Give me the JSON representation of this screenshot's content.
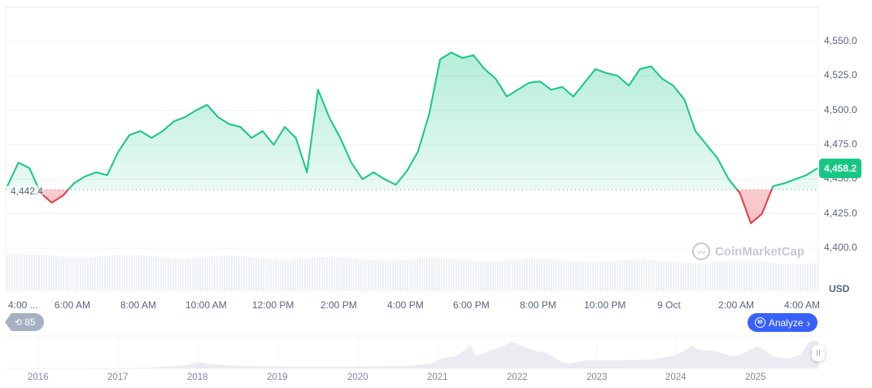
{
  "chart_data": {
    "type": "line",
    "title": "",
    "currency": "USD",
    "current_price": "4,458.2",
    "baseline_price": "4,442.4",
    "ylabel": "USD",
    "ylim": [
      4390,
      4560
    ],
    "y_ticks": [
      "4,550.0",
      "4,525.0",
      "4,500.0",
      "4,475.0",
      "4,450.0",
      "4,425.0",
      "4,400.0"
    ],
    "x_ticks": [
      "4:00 ...",
      "6:00 AM",
      "8:00 AM",
      "10:00 AM",
      "12:00 PM",
      "2:00 PM",
      "4:00 PM",
      "6:00 PM",
      "8:00 PM",
      "10:00 PM",
      "9 Oct",
      "2:00 AM",
      "4:00 AM"
    ],
    "colors": {
      "up": "#16c784",
      "down": "#ea3943",
      "grid": "#eff2f5"
    },
    "x": [
      "4:00 AM",
      "4:20",
      "4:40",
      "5:00",
      "5:20",
      "5:40",
      "6:00 AM",
      "6:20",
      "6:40",
      "7:00",
      "7:20",
      "7:40",
      "8:00 AM",
      "8:20",
      "8:40",
      "9:00",
      "9:20",
      "9:40",
      "10:00 AM",
      "10:20",
      "10:40",
      "11:00",
      "11:20",
      "11:40",
      "12:00 PM",
      "12:20",
      "12:40",
      "1:00",
      "1:20",
      "1:40",
      "2:00 PM",
      "2:20",
      "2:40",
      "3:00",
      "3:20",
      "3:40",
      "4:00 PM",
      "4:20",
      "4:40",
      "5:00",
      "5:20",
      "5:40",
      "6:00 PM",
      "6:20",
      "6:40",
      "7:00",
      "7:20",
      "7:40",
      "8:00 PM",
      "8:20",
      "8:40",
      "9:00",
      "9:20",
      "9:40",
      "10:00 PM",
      "10:20",
      "10:40",
      "11:00",
      "11:20",
      "11:40",
      "9 Oct",
      "0:20",
      "0:40",
      "1:00",
      "1:20",
      "1:40",
      "2:00 AM",
      "2:20",
      "2:40",
      "3:00",
      "3:20",
      "3:40",
      "4:00 AM",
      "4:20"
    ],
    "values": [
      4445,
      4462,
      4458,
      4440,
      4433,
      4438,
      4447,
      4452,
      4455,
      4453,
      4470,
      4482,
      4485,
      4480,
      4485,
      4492,
      4495,
      4500,
      4504,
      4495,
      4490,
      4488,
      4480,
      4485,
      4475,
      4488,
      4480,
      4455,
      4515,
      4495,
      4480,
      4462,
      4450,
      4455,
      4450,
      4446,
      4456,
      4470,
      4497,
      4537,
      4542,
      4538,
      4540,
      4530,
      4523,
      4510,
      4515,
      4520,
      4521,
      4515,
      4517,
      4510,
      4520,
      4530,
      4527,
      4525,
      4518,
      4530,
      4532,
      4523,
      4518,
      4508,
      4485,
      4475,
      4465,
      4450,
      4440,
      4418,
      4425,
      4445,
      4447,
      4450,
      4453,
      4458
    ]
  },
  "overlay": {
    "baseline_label": "4,442.4",
    "price_tag": "4,458.2",
    "unit_label": "USD",
    "watermark": "CoinMarketCap",
    "history_count": "85",
    "analyze_label": "Analyze",
    "analyze_chevron": "›"
  },
  "navigator": {
    "years": [
      "2016",
      "2017",
      "2018",
      "2019",
      "2020",
      "2021",
      "2022",
      "2023",
      "2024",
      "2025"
    ]
  }
}
